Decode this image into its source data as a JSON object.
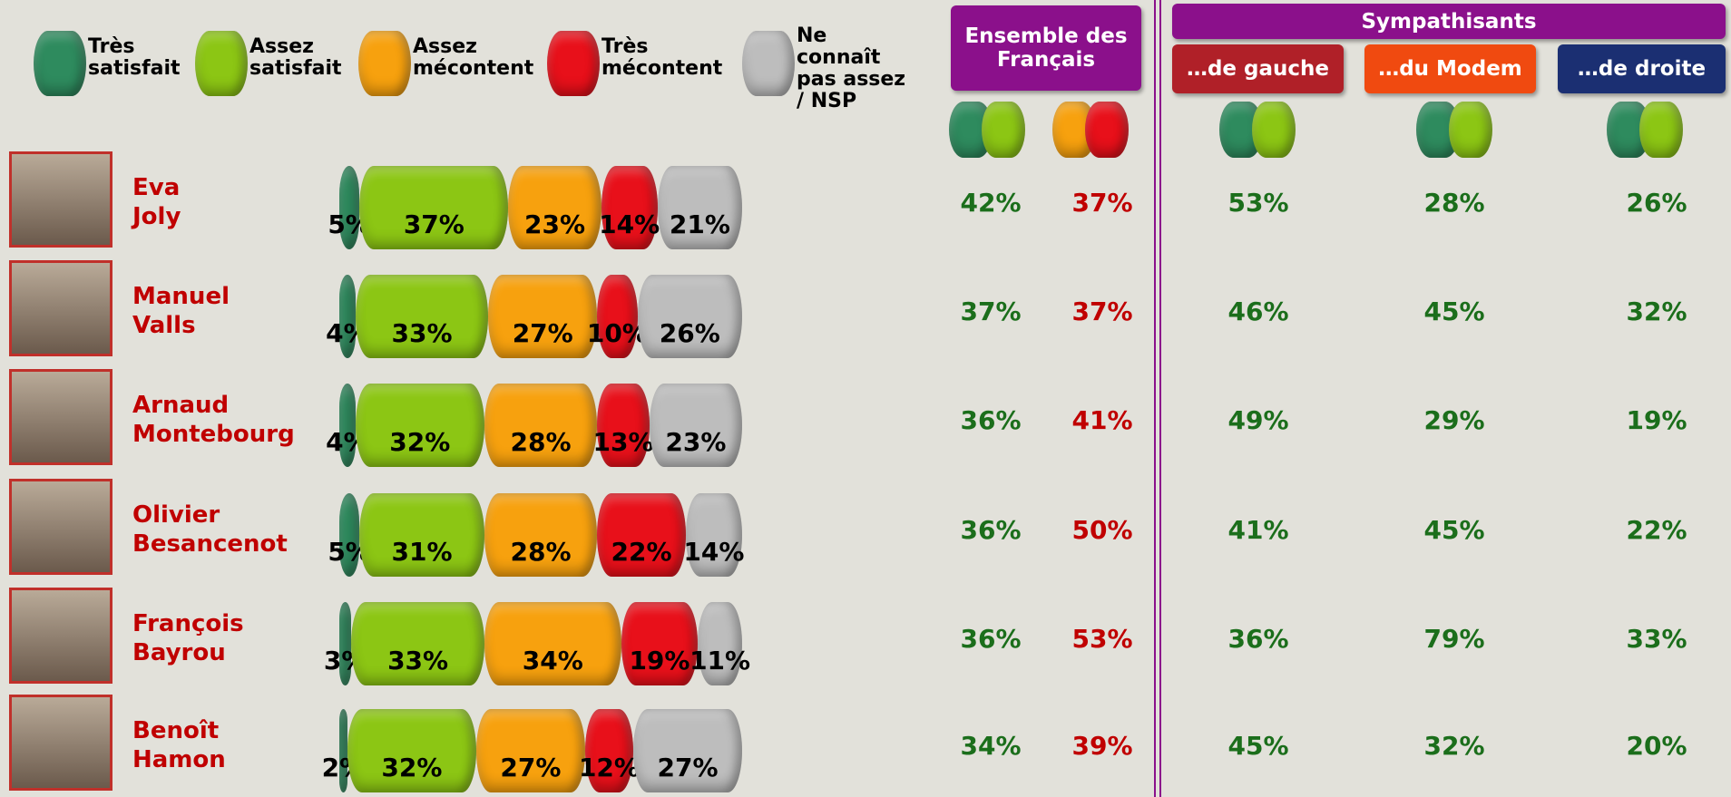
{
  "chart_data": {
    "type": "bar",
    "orientation": "horizontal",
    "stacked": true,
    "categories": [
      "Eva Joly",
      "Manuel Valls",
      "Arnaud Montebourg",
      "Olivier Besancenot",
      "François Bayrou",
      "Benoît Hamon"
    ],
    "xlim": [
      0,
      100
    ],
    "series": [
      {
        "name": "Très satisfait",
        "color": "#2e8b5e",
        "values": [
          5,
          4,
          4,
          5,
          3,
          2
        ],
        "value_labels": [
          "5%",
          "4%",
          "4%",
          "5%",
          "3%",
          "2%"
        ]
      },
      {
        "name": "Assez satisfait",
        "color": "#8cc614",
        "values": [
          37,
          33,
          32,
          31,
          33,
          32
        ],
        "value_labels": [
          "37%",
          "33%",
          "32%",
          "31%",
          "33%",
          "32%"
        ]
      },
      {
        "name": "Assez mécontent",
        "color": "#f7a10e",
        "values": [
          23,
          27,
          28,
          28,
          34,
          27
        ],
        "value_labels": [
          "23%",
          "27%",
          "28%",
          "28%",
          "34%",
          "27%"
        ]
      },
      {
        "name": "Très mécontent",
        "color": "#e8101a",
        "values": [
          14,
          10,
          13,
          22,
          19,
          12
        ],
        "value_labels": [
          "14%",
          "10%",
          "13%",
          "22%",
          "19%",
          "12%"
        ]
      },
      {
        "name": "Ne connaît pas assez / NSP",
        "color": "#bdbdbd",
        "values": [
          21,
          26,
          23,
          14,
          11,
          27
        ],
        "value_labels": [
          "21%",
          "26%",
          "23%",
          "14%",
          "11%",
          "27%"
        ]
      }
    ]
  },
  "table": {
    "ensemble": "Ensemble des Français",
    "sympathisants": "Sympathisants",
    "groups": [
      "…de gauche",
      "…du Modem",
      "…de droite"
    ],
    "rows": [
      [
        "42%",
        "37%",
        "53%",
        "28%",
        "26%"
      ],
      [
        "37%",
        "37%",
        "46%",
        "45%",
        "32%"
      ],
      [
        "36%",
        "41%",
        "49%",
        "29%",
        "19%"
      ],
      [
        "36%",
        "50%",
        "41%",
        "45%",
        "22%"
      ],
      [
        "36%",
        "53%",
        "36%",
        "79%",
        "33%"
      ],
      [
        "34%",
        "39%",
        "45%",
        "32%",
        "20%"
      ]
    ]
  }
}
